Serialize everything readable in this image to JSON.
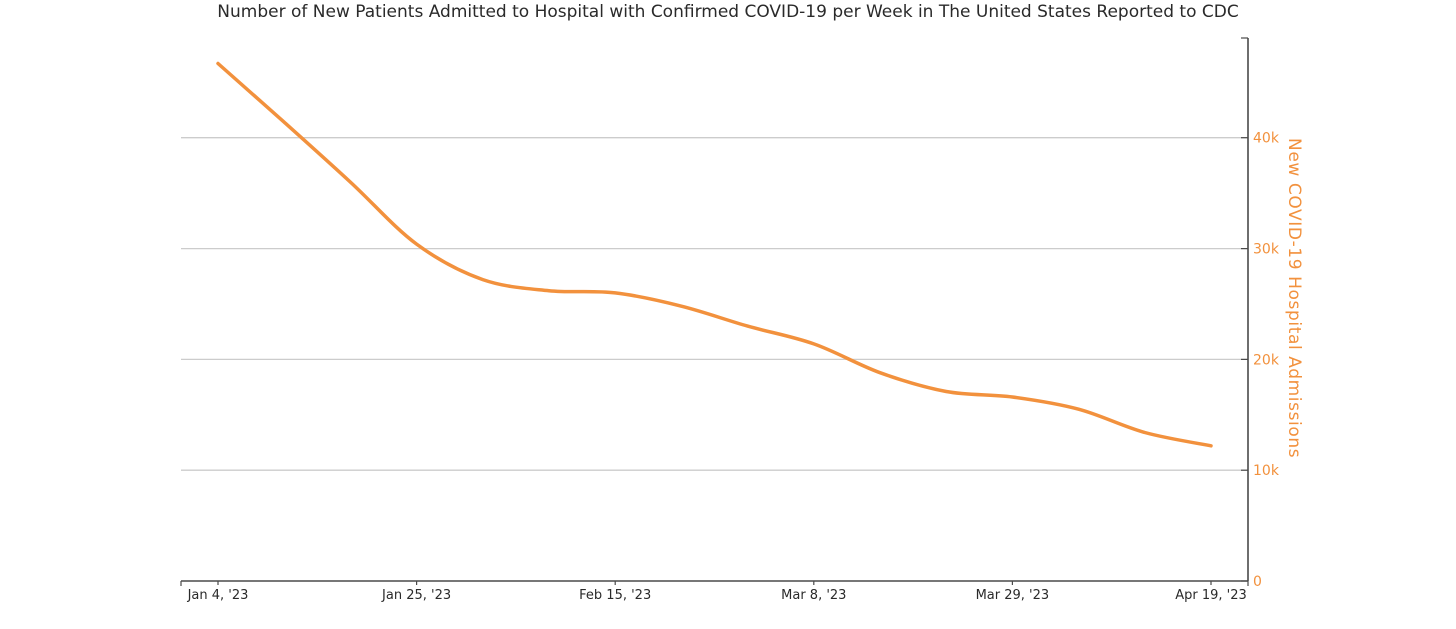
{
  "page": {
    "title": "Number of New Patients Admitted to Hospital with Confirmed COVID-19 per Week in The United States Reported to CDC"
  },
  "chart_data": {
    "type": "line",
    "title": "Number of New Patients Admitted to Hospital with Confirmed COVID-19 per Week in The United States Reported to CDC",
    "xlabel": "",
    "ylabel": "New COVID-19 Hospital Admissions",
    "x": [
      "Jan 4, '23",
      "Jan 11, '23",
      "Jan 18, '23",
      "Jan 25, '23",
      "Feb 1, '23",
      "Feb 8, '23",
      "Feb 15, '23",
      "Feb 22, '23",
      "Mar 1, '23",
      "Mar 8, '23",
      "Mar 15, '23",
      "Mar 22, '23",
      "Mar 29, '23",
      "Apr 5, '23",
      "Apr 12, '23",
      "Apr 19, '23"
    ],
    "values": [
      46700,
      41400,
      36000,
      30400,
      27200,
      26200,
      26000,
      24800,
      23000,
      21400,
      18800,
      17100,
      16600,
      15500,
      13400,
      12200
    ],
    "series_name": "New COVID-19 Hospital Admissions",
    "ylim": [
      0,
      49000
    ],
    "yticks": [
      {
        "value": 0,
        "label": "0"
      },
      {
        "value": 10000,
        "label": "10k"
      },
      {
        "value": 20000,
        "label": "20k"
      },
      {
        "value": 30000,
        "label": "30k"
      },
      {
        "value": 40000,
        "label": "40k"
      }
    ],
    "xticks": [
      {
        "index": 0,
        "label": "Jan 4, '23"
      },
      {
        "index": 3,
        "label": "Jan 25, '23"
      },
      {
        "index": 6,
        "label": "Feb 15, '23"
      },
      {
        "index": 9,
        "label": "Mar 8, '23"
      },
      {
        "index": 12,
        "label": "Mar 29, '23"
      },
      {
        "index": 15,
        "label": "Apr 19, '23"
      }
    ],
    "grid": "horizontal-only",
    "legend": "none",
    "y_axis_side": "right",
    "line_shape": "spline",
    "colors": {
      "line": "#F2913D",
      "y_axis_text": "#F2913D",
      "x_axis_text": "#2A2A2A",
      "axis_line": "#4A4A4A",
      "gridline": "#CCCCCC",
      "background": "#FFFFFF"
    }
  }
}
